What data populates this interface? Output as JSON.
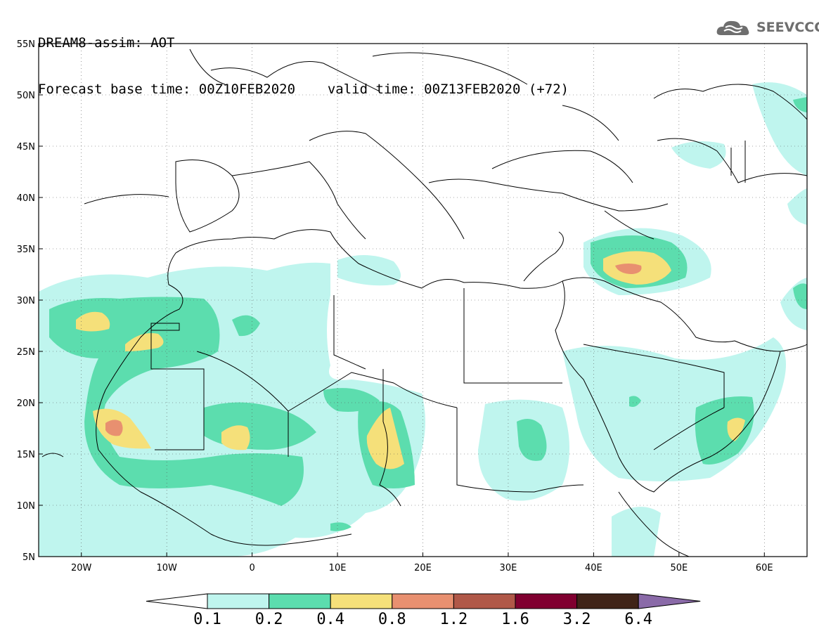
{
  "header": {
    "line1": "DREAM8-assim: AOT",
    "base_label": "Forecast base time:",
    "base_time": "00Z10FEB2020",
    "valid_label": "valid time:",
    "valid_time": "00Z13FEB2020",
    "lead": "(+72)"
  },
  "logo": {
    "text": "SEEVCCC",
    "icon": "cloud-icon"
  },
  "map": {
    "lon_range": [
      -25,
      65
    ],
    "lat_range": [
      5,
      55
    ],
    "lat_labels": [
      "55N",
      "50N",
      "45N",
      "40N",
      "35N",
      "30N",
      "25N",
      "20N",
      "15N",
      "10N",
      "5N"
    ],
    "lon_labels": [
      "20W",
      "10W",
      "0",
      "10E",
      "20E",
      "30E",
      "40E",
      "50E",
      "60E"
    ],
    "grid": "dotted"
  },
  "colorbar": {
    "labels": [
      "0.1",
      "0.2",
      "0.4",
      "0.8",
      "1.2",
      "1.6",
      "3.2",
      "6.4"
    ],
    "colors": [
      "#bff5ee",
      "#5cddae",
      "#f5e07a",
      "#e89070",
      "#b05848",
      "#800030",
      "#402418",
      "#8a6aa8"
    ],
    "under_color": "#ffffff"
  }
}
